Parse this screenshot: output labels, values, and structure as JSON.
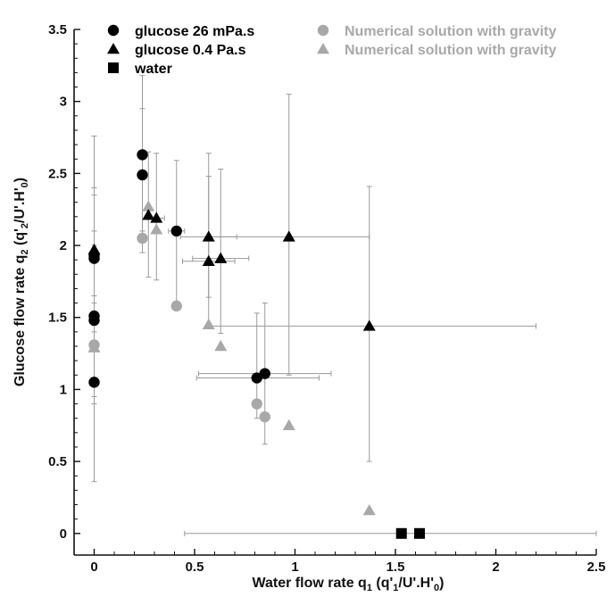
{
  "chart_data": {
    "type": "scatter",
    "xlim": [
      -0.1,
      2.5
    ],
    "ylim": [
      -0.15,
      3.5
    ],
    "x_ticks": [
      "0",
      "0.5",
      "1",
      "1.5",
      "2",
      "2.5"
    ],
    "y_ticks": [
      "0",
      "0.5",
      "1",
      "1.5",
      "2",
      "2.5",
      "3",
      "3.5"
    ],
    "grid": false,
    "legend_position": "top",
    "xlabel": {
      "main": "Water flow rate q",
      "sub": "1",
      "paren": " (q'",
      "sub2": "1",
      "rest": "/U'.H'",
      "sub3": "0",
      "close": ")"
    },
    "ylabel": {
      "main": "Glucose flow rate q",
      "sub": "2",
      "paren": " (q'",
      "sub2": "2",
      "rest": "/U'.H'",
      "sub3": "0",
      "close": ")"
    },
    "colors": {
      "black": "#000000",
      "gray": "#a8a8a8",
      "errorbar": "#9a9a9a"
    },
    "series": [
      {
        "name": "glucose 26 mPa.s",
        "marker": "circle",
        "color": "#000000",
        "points": [
          {
            "x": 0,
            "y": 1.05,
            "ylo": 0.36,
            "yhi": 1.65
          },
          {
            "x": 0,
            "y": 1.48,
            "ylo": 0.9,
            "yhi": 2.0
          },
          {
            "x": 0,
            "y": 1.51,
            "ylo": 0.95,
            "yhi": 2.1
          },
          {
            "x": 0,
            "y": 1.91,
            "ylo": 1.4,
            "yhi": 2.35
          },
          {
            "x": 0,
            "y": 1.93,
            "ylo": 1.5,
            "yhi": 2.4
          },
          {
            "x": 0.24,
            "y": 2.49,
            "ylo": 1.95,
            "yhi": 2.95
          },
          {
            "x": 0.24,
            "y": 2.63,
            "ylo": 2.1,
            "yhi": 3.18
          },
          {
            "x": 0.41,
            "y": 2.1,
            "ylo": 1.55,
            "yhi": 2.59,
            "xlo": 0.37,
            "xhi": 0.45
          },
          {
            "x": 0.81,
            "y": 1.08,
            "ylo": 0.8,
            "yhi": 1.53,
            "xlo": 0.51,
            "xhi": 1.12
          },
          {
            "x": 0.85,
            "y": 1.11,
            "ylo": 0.62,
            "yhi": 1.6,
            "xlo": 0.52,
            "xhi": 1.18
          }
        ]
      },
      {
        "name": "glucose 0.4 Pa.s",
        "marker": "triangle",
        "color": "#000000",
        "points": [
          {
            "x": 0,
            "y": 1.97,
            "ylo": 1.6,
            "yhi": 2.76
          },
          {
            "x": 0.27,
            "y": 2.21,
            "ylo": 1.78,
            "yhi": 2.65
          },
          {
            "x": 0.31,
            "y": 2.19,
            "ylo": 1.76,
            "yhi": 2.64,
            "xlo": 0.27,
            "xhi": 0.35
          },
          {
            "x": 0.57,
            "y": 2.06,
            "ylo": 1.64,
            "yhi": 2.64,
            "xlo": 0.43,
            "xhi": 0.71
          },
          {
            "x": 0.57,
            "y": 1.89,
            "ylo": 1.43,
            "yhi": 2.48,
            "xlo": 0.44,
            "xhi": 0.7
          },
          {
            "x": 0.63,
            "y": 1.91,
            "ylo": 1.39,
            "yhi": 2.53,
            "xlo": 0.49,
            "xhi": 0.77
          },
          {
            "x": 0.97,
            "y": 2.06,
            "ylo": 1.1,
            "yhi": 3.05,
            "xlo": 0.57,
            "xhi": 1.37
          },
          {
            "x": 1.37,
            "y": 1.44,
            "ylo": 0.5,
            "yhi": 2.41,
            "xlo": 0.57,
            "xhi": 2.2
          }
        ]
      },
      {
        "name": "water",
        "marker": "square",
        "color": "#000000",
        "points": [
          {
            "x": 1.53,
            "y": 0.0,
            "xlo": 0.45,
            "xhi": 2.5
          },
          {
            "x": 1.62,
            "y": 0.0
          }
        ]
      },
      {
        "name": "Numerical solution with gravity",
        "marker": "circle",
        "color": "#a8a8a8",
        "points": [
          {
            "x": 0,
            "y": 1.31
          },
          {
            "x": 0.24,
            "y": 2.05
          },
          {
            "x": 0.41,
            "y": 1.58
          },
          {
            "x": 0.81,
            "y": 0.9
          },
          {
            "x": 0.85,
            "y": 0.81
          }
        ]
      },
      {
        "name": "Numerical solution with gravity",
        "marker": "triangle",
        "color": "#a8a8a8",
        "points": [
          {
            "x": 0,
            "y": 1.29
          },
          {
            "x": 0.27,
            "y": 2.27
          },
          {
            "x": 0.31,
            "y": 2.11
          },
          {
            "x": 0.57,
            "y": 1.45
          },
          {
            "x": 0.63,
            "y": 1.3
          },
          {
            "x": 0.97,
            "y": 0.75
          },
          {
            "x": 1.37,
            "y": 0.16
          }
        ]
      }
    ]
  }
}
